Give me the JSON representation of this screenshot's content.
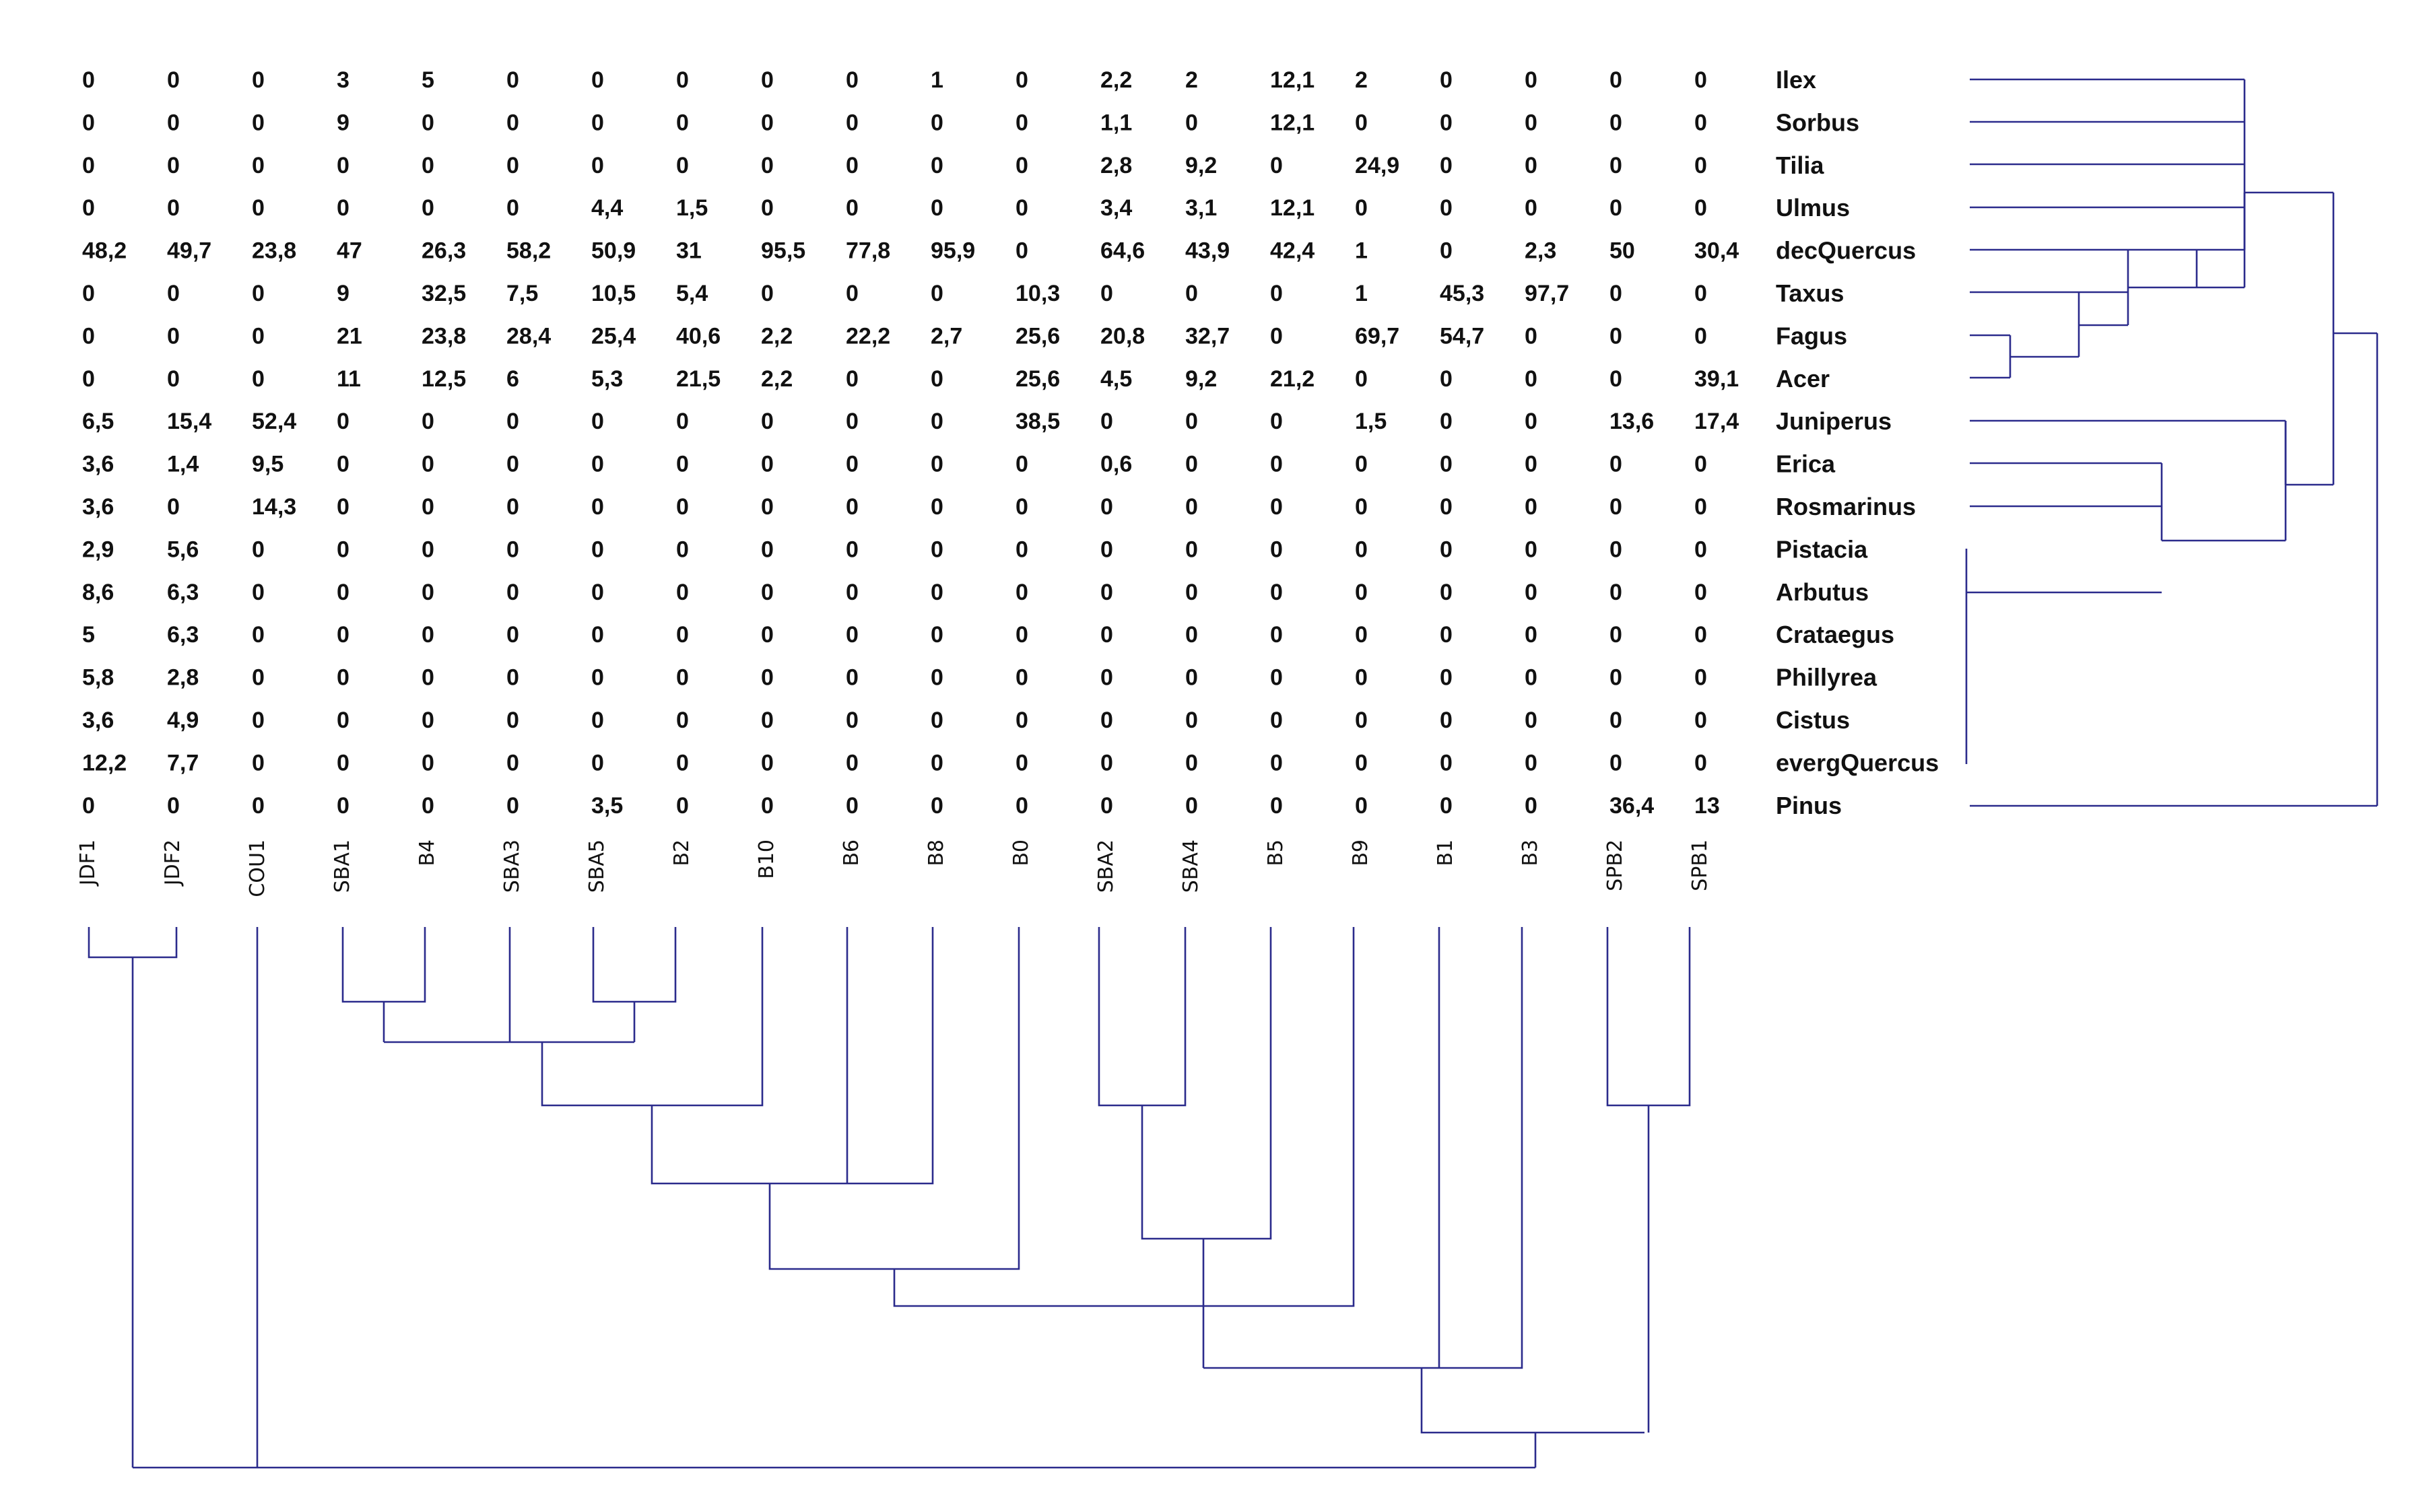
{
  "diagram": {
    "samples": [
      "JDF1",
      "JDF2",
      "COU1",
      "SBA1",
      "B4",
      "SBA3",
      "SBA5",
      "B2",
      "B10",
      "B6",
      "B8",
      "B0",
      "SBA2",
      "SBA4",
      "B5",
      "B9",
      "B1",
      "B3",
      "SPB2",
      "SPB1"
    ],
    "taxa": [
      "Ilex",
      "Sorbus",
      "Tilia",
      "Ulmus",
      "decQuercus",
      "Taxus",
      "Fagus",
      "Acer",
      "Juniperus",
      "Erica",
      "Rosmarinus",
      "Pistacia",
      "Arbutus",
      "Crataegus",
      "Phillyrea",
      "Cistus",
      "evergQuercus",
      "Pinus"
    ],
    "matrix": [
      [
        "0",
        "0",
        "0",
        "3",
        "5",
        "0",
        "0",
        "0",
        "0",
        "0",
        "1",
        "0",
        "2,2",
        "2",
        "12,1",
        "2",
        "0",
        "0",
        "0",
        "0"
      ],
      [
        "0",
        "0",
        "0",
        "9",
        "0",
        "0",
        "0",
        "0",
        "0",
        "0",
        "0",
        "0",
        "1,1",
        "0",
        "12,1",
        "0",
        "0",
        "0",
        "0",
        "0"
      ],
      [
        "0",
        "0",
        "0",
        "0",
        "0",
        "0",
        "0",
        "0",
        "0",
        "0",
        "0",
        "0",
        "2,8",
        "9,2",
        "0",
        "24,9",
        "0",
        "0",
        "0",
        "0"
      ],
      [
        "0",
        "0",
        "0",
        "0",
        "0",
        "0",
        "4,4",
        "1,5",
        "0",
        "0",
        "0",
        "0",
        "3,4",
        "3,1",
        "12,1",
        "0",
        "0",
        "0",
        "0",
        "0"
      ],
      [
        "48,2",
        "49,7",
        "23,8",
        "47",
        "26,3",
        "58,2",
        "50,9",
        "31",
        "95,5",
        "77,8",
        "95,9",
        "0",
        "64,6",
        "43,9",
        "42,4",
        "1",
        "0",
        "2,3",
        "50",
        "30,4"
      ],
      [
        "0",
        "0",
        "0",
        "9",
        "32,5",
        "7,5",
        "10,5",
        "5,4",
        "0",
        "0",
        "0",
        "10,3",
        "0",
        "0",
        "0",
        "1",
        "45,3",
        "97,7",
        "0",
        "0"
      ],
      [
        "0",
        "0",
        "0",
        "21",
        "23,8",
        "28,4",
        "25,4",
        "40,6",
        "2,2",
        "22,2",
        "2,7",
        "25,6",
        "20,8",
        "32,7",
        "0",
        "69,7",
        "54,7",
        "0",
        "0",
        "0"
      ],
      [
        "0",
        "0",
        "0",
        "11",
        "12,5",
        "6",
        "5,3",
        "21,5",
        "2,2",
        "0",
        "0",
        "25,6",
        "4,5",
        "9,2",
        "21,2",
        "0",
        "0",
        "0",
        "0",
        "39,1"
      ],
      [
        "6,5",
        "15,4",
        "52,4",
        "0",
        "0",
        "0",
        "0",
        "0",
        "0",
        "0",
        "0",
        "38,5",
        "0",
        "0",
        "0",
        "1,5",
        "0",
        "0",
        "13,6",
        "17,4"
      ],
      [
        "3,6",
        "1,4",
        "9,5",
        "0",
        "0",
        "0",
        "0",
        "0",
        "0",
        "0",
        "0",
        "0",
        "0,6",
        "0",
        "0",
        "0",
        "0",
        "0",
        "0",
        "0"
      ],
      [
        "3,6",
        "0",
        "14,3",
        "0",
        "0",
        "0",
        "0",
        "0",
        "0",
        "0",
        "0",
        "0",
        "0",
        "0",
        "0",
        "0",
        "0",
        "0",
        "0",
        "0"
      ],
      [
        "2,9",
        "5,6",
        "0",
        "0",
        "0",
        "0",
        "0",
        "0",
        "0",
        "0",
        "0",
        "0",
        "0",
        "0",
        "0",
        "0",
        "0",
        "0",
        "0",
        "0"
      ],
      [
        "8,6",
        "6,3",
        "0",
        "0",
        "0",
        "0",
        "0",
        "0",
        "0",
        "0",
        "0",
        "0",
        "0",
        "0",
        "0",
        "0",
        "0",
        "0",
        "0",
        "0"
      ],
      [
        "5",
        "6,3",
        "0",
        "0",
        "0",
        "0",
        "0",
        "0",
        "0",
        "0",
        "0",
        "0",
        "0",
        "0",
        "0",
        "0",
        "0",
        "0",
        "0",
        "0"
      ],
      [
        "5,8",
        "2,8",
        "0",
        "0",
        "0",
        "0",
        "0",
        "0",
        "0",
        "0",
        "0",
        "0",
        "0",
        "0",
        "0",
        "0",
        "0",
        "0",
        "0",
        "0"
      ],
      [
        "3,6",
        "4,9",
        "0",
        "0",
        "0",
        "0",
        "0",
        "0",
        "0",
        "0",
        "0",
        "0",
        "0",
        "0",
        "0",
        "0",
        "0",
        "0",
        "0",
        "0"
      ],
      [
        "12,2",
        "7,7",
        "0",
        "0",
        "0",
        "0",
        "0",
        "0",
        "0",
        "0",
        "0",
        "0",
        "0",
        "0",
        "0",
        "0",
        "0",
        "0",
        "0",
        "0"
      ],
      [
        "0",
        "0",
        "0",
        "0",
        "0",
        "0",
        "3,5",
        "0",
        "0",
        "0",
        "0",
        "0",
        "0",
        "0",
        "0",
        "0",
        "0",
        "0",
        "36,4",
        "13"
      ]
    ],
    "line_color": "#2b2b8c",
    "text_color": "#111111"
  }
}
